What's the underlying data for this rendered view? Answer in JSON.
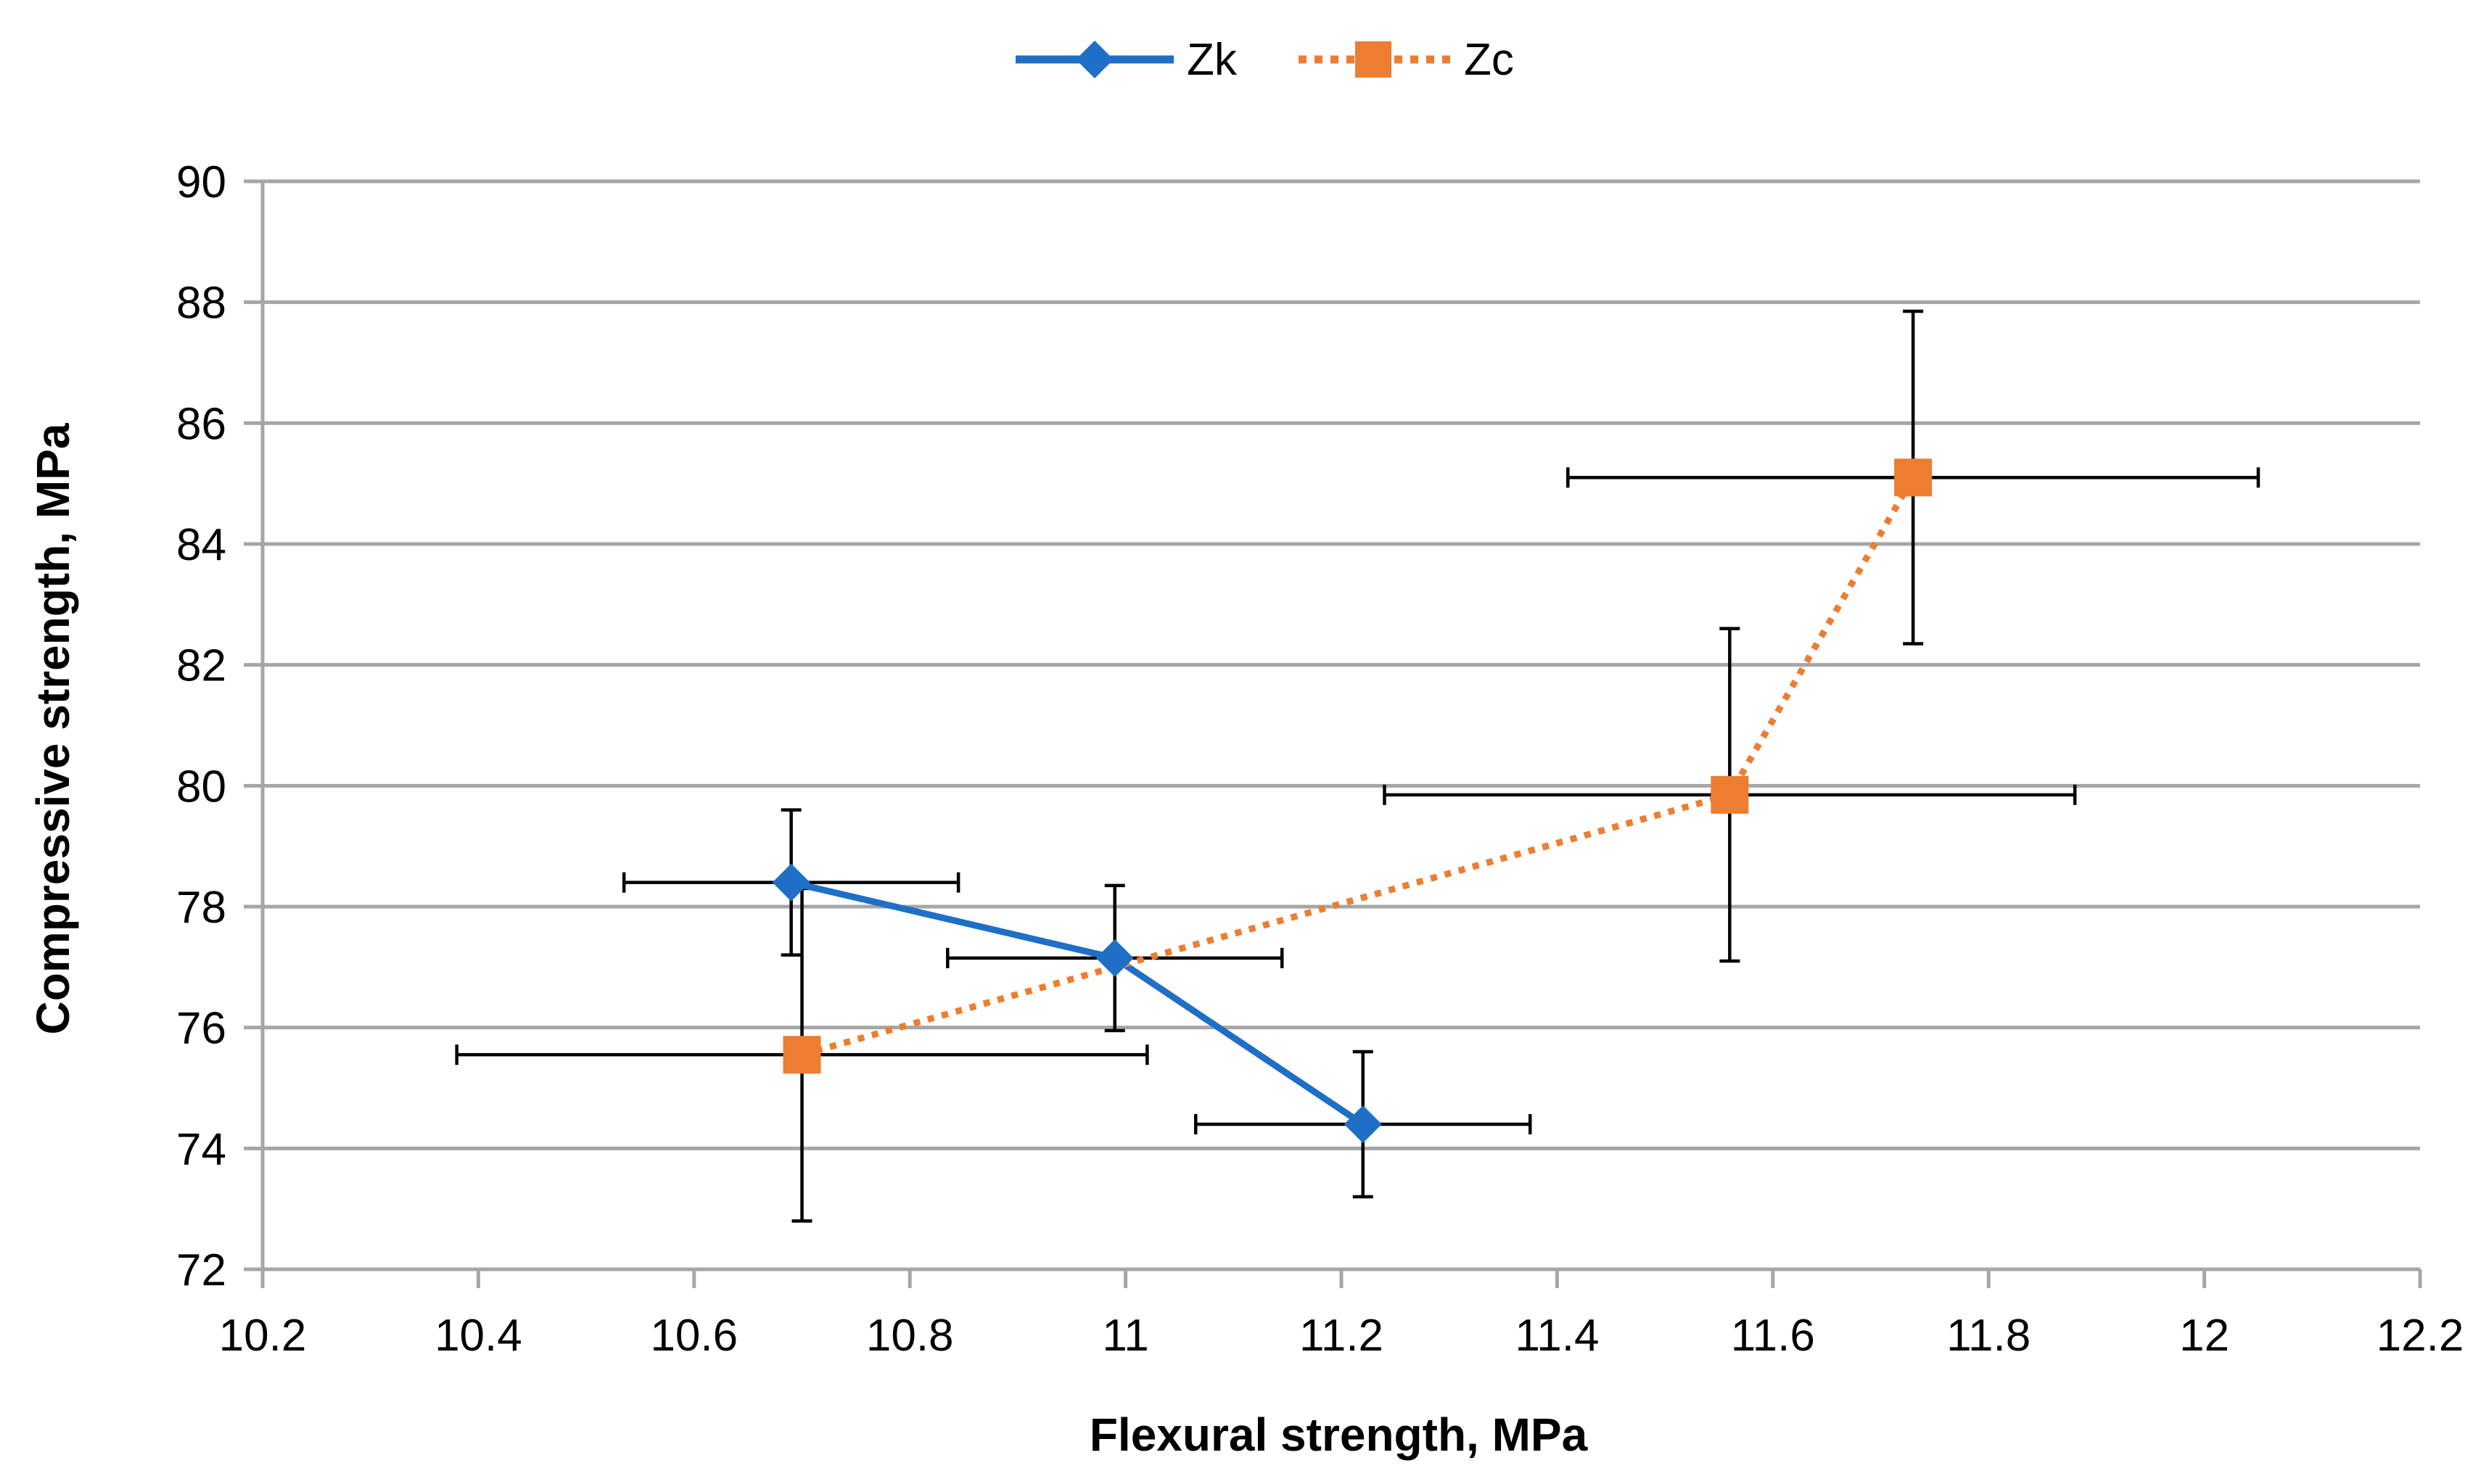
{
  "chart_data": {
    "type": "scatter",
    "title": "",
    "xlabel": "Flexural strength, MPa",
    "ylabel": "Compressive strength, MPa",
    "xlim": [
      10.2,
      12.2
    ],
    "ylim": [
      72,
      90
    ],
    "x_ticks": [
      10.2,
      10.4,
      10.6,
      10.8,
      11,
      11.2,
      11.4,
      11.6,
      11.8,
      12,
      12.2
    ],
    "x_tick_labels": [
      "10.2",
      "10.4",
      "10.6",
      "10.8",
      "11",
      "11.2",
      "11.4",
      "11.6",
      "11.8",
      "12",
      "12.2"
    ],
    "y_ticks": [
      72,
      74,
      76,
      78,
      80,
      82,
      84,
      86,
      88,
      90
    ],
    "y_tick_labels": [
      "72",
      "74",
      "76",
      "78",
      "80",
      "82",
      "84",
      "86",
      "88",
      "90"
    ],
    "grid": true,
    "legend_position": "top-center",
    "series": [
      {
        "name": "Zk",
        "color": "#1f6fc6",
        "marker": "diamond",
        "line_style": "solid",
        "points": [
          {
            "x": 10.69,
            "y": 78.4,
            "x_err": 0.155,
            "y_err": 1.2
          },
          {
            "x": 10.99,
            "y": 77.15,
            "x_err": 0.155,
            "y_err": 1.2
          },
          {
            "x": 11.22,
            "y": 74.4,
            "x_err": 0.155,
            "y_err": 1.2
          }
        ]
      },
      {
        "name": "Zc",
        "color": "#ed7d31",
        "marker": "square",
        "line_style": "dotted",
        "points": [
          {
            "x": 10.7,
            "y": 75.55,
            "x_err": 0.32,
            "y_err": 2.75
          },
          {
            "x": 11.56,
            "y": 79.85,
            "x_err": 0.32,
            "y_err": 2.75
          },
          {
            "x": 11.73,
            "y": 85.1,
            "x_err": 0.32,
            "y_err": 2.75
          }
        ]
      }
    ]
  }
}
